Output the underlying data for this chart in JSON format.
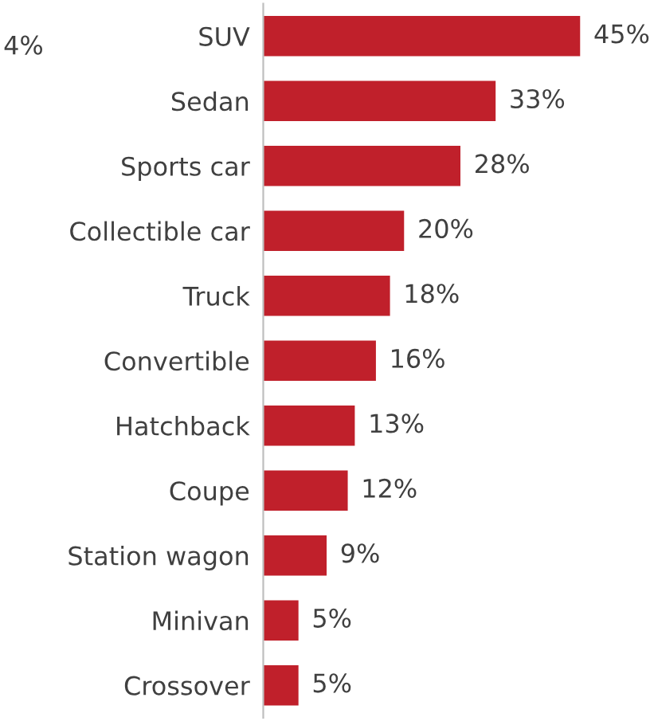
{
  "chart_data": {
    "type": "bar",
    "orientation": "horizontal",
    "categories": [
      "SUV",
      "Sedan",
      "Sports car",
      "Collectible car",
      "Truck",
      "Convertible",
      "Hatchback",
      "Coupe",
      "Station wagon",
      "Minivan",
      "Crossover"
    ],
    "values": [
      45,
      33,
      28,
      20,
      18,
      16,
      13,
      12,
      9,
      5,
      5
    ],
    "value_labels": [
      "45%",
      "33%",
      "28%",
      "20%",
      "18%",
      "16%",
      "13%",
      "12%",
      "9%",
      "5%",
      "5%"
    ],
    "color": "#c0202b",
    "annotations": [
      "4%"
    ]
  }
}
